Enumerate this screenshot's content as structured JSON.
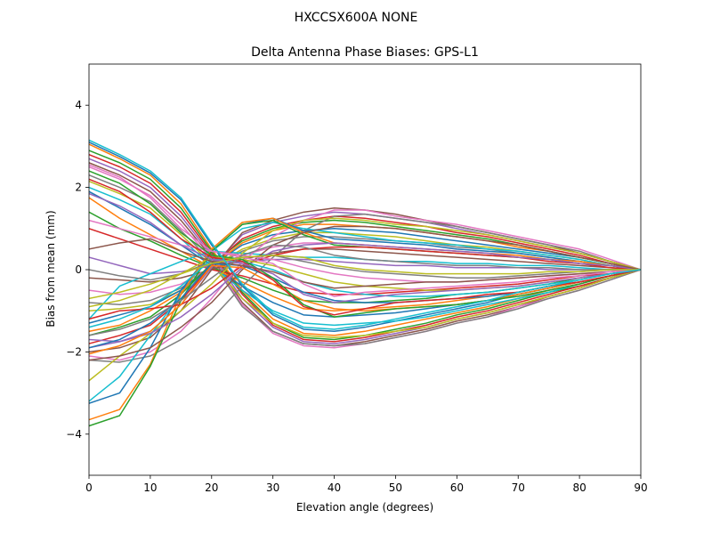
{
  "chart_data": {
    "type": "line",
    "suptitle": "HXCCSX600A      NONE",
    "title": "Delta Antenna Phase Biases: GPS-L1",
    "xlabel": "Elevation angle (degrees)",
    "ylabel": "Bias from mean (mm)",
    "xlim": [
      0,
      90
    ],
    "ylim": [
      -5,
      5
    ],
    "xticks": [
      0,
      10,
      20,
      30,
      40,
      50,
      60,
      70,
      80,
      90
    ],
    "yticks": [
      -4,
      -2,
      0,
      2,
      4
    ],
    "grid": false,
    "legend": "none",
    "x": [
      0,
      5,
      10,
      15,
      20,
      25,
      30,
      35,
      40,
      45,
      50,
      55,
      60,
      65,
      70,
      75,
      80,
      85,
      90
    ],
    "palette": [
      "#1f77b4",
      "#ff7f0e",
      "#2ca02c",
      "#d62728",
      "#9467bd",
      "#8c564b",
      "#e377c2",
      "#7f7f7f",
      "#bcbd22",
      "#17becf"
    ],
    "series": [
      {
        "values": [
          3.1,
          2.75,
          2.35,
          1.7,
          0.6,
          -0.4,
          -1.1,
          -1.45,
          -1.5,
          -1.4,
          -1.25,
          -1.1,
          -0.95,
          -0.8,
          -0.6,
          -0.45,
          -0.3,
          -0.15,
          0
        ]
      },
      {
        "values": [
          3.05,
          2.7,
          2.3,
          1.6,
          0.5,
          -0.5,
          -1.2,
          -1.55,
          -1.6,
          -1.5,
          -1.35,
          -1.2,
          -1.05,
          -0.9,
          -0.7,
          -0.5,
          -0.35,
          -0.15,
          0
        ]
      },
      {
        "values": [
          2.9,
          2.6,
          2.2,
          1.5,
          0.45,
          -0.55,
          -1.3,
          -1.65,
          -1.7,
          -1.6,
          -1.45,
          -1.3,
          -1.1,
          -0.95,
          -0.75,
          -0.55,
          -0.4,
          -0.2,
          0
        ]
      },
      {
        "values": [
          2.8,
          2.5,
          2.1,
          1.4,
          0.4,
          -0.6,
          -1.35,
          -1.7,
          -1.75,
          -1.65,
          -1.5,
          -1.35,
          -1.15,
          -1.0,
          -0.8,
          -0.6,
          -0.4,
          -0.2,
          0
        ]
      },
      {
        "values": [
          2.7,
          2.4,
          2.0,
          1.3,
          0.35,
          -0.7,
          -1.4,
          -1.75,
          -1.8,
          -1.7,
          -1.55,
          -1.4,
          -1.2,
          -1.05,
          -0.85,
          -0.65,
          -0.45,
          -0.2,
          0
        ]
      },
      {
        "values": [
          2.6,
          2.3,
          1.9,
          1.2,
          0.3,
          -0.8,
          -1.5,
          -1.8,
          -1.85,
          -1.75,
          -1.6,
          -1.45,
          -1.25,
          -1.1,
          -0.9,
          -0.65,
          -0.45,
          -0.2,
          0
        ]
      },
      {
        "values": [
          2.5,
          2.2,
          1.8,
          1.1,
          0.25,
          -0.85,
          -1.55,
          -1.85,
          -1.9,
          -1.8,
          -1.65,
          -1.5,
          -1.3,
          -1.15,
          -0.9,
          -0.7,
          -0.5,
          -0.25,
          0
        ]
      },
      {
        "values": [
          2.3,
          2.0,
          1.65,
          0.95,
          0.2,
          -0.9,
          -1.5,
          -1.8,
          -1.85,
          -1.8,
          -1.65,
          -1.5,
          -1.3,
          -1.15,
          -0.95,
          -0.7,
          -0.5,
          -0.25,
          0
        ]
      },
      {
        "values": [
          2.15,
          1.85,
          1.5,
          0.85,
          0.15,
          -0.7,
          -1.3,
          -1.6,
          -1.65,
          -1.6,
          -1.5,
          -1.4,
          -1.2,
          -1.05,
          -0.85,
          -0.65,
          -0.45,
          -0.2,
          0
        ]
      },
      {
        "values": [
          2.0,
          1.7,
          1.35,
          0.75,
          0.1,
          -0.5,
          -1.0,
          -1.3,
          -1.35,
          -1.3,
          -1.25,
          -1.15,
          -1.0,
          -0.85,
          -0.7,
          -0.55,
          -0.35,
          -0.15,
          0
        ]
      },
      {
        "values": [
          1.9,
          1.5,
          1.1,
          0.6,
          0.1,
          -0.4,
          -0.8,
          -1.1,
          -1.15,
          -1.1,
          -1.05,
          -0.95,
          -0.85,
          -0.75,
          -0.6,
          -0.45,
          -0.3,
          -0.15,
          0
        ]
      },
      {
        "values": [
          1.75,
          1.25,
          0.85,
          0.45,
          0.05,
          -0.3,
          -0.65,
          -0.95,
          -1.0,
          -0.95,
          -0.9,
          -0.85,
          -0.75,
          -0.65,
          -0.55,
          -0.4,
          -0.25,
          -0.1,
          0
        ]
      },
      {
        "values": [
          1.4,
          1.0,
          0.7,
          0.35,
          0.05,
          -0.2,
          -0.5,
          -0.75,
          -0.8,
          -0.8,
          -0.75,
          -0.7,
          -0.6,
          -0.55,
          -0.45,
          -0.35,
          -0.2,
          -0.1,
          0
        ]
      },
      {
        "values": [
          1.0,
          0.75,
          0.5,
          0.25,
          0.0,
          -0.15,
          -0.35,
          -0.55,
          -0.6,
          -0.6,
          -0.55,
          -0.5,
          -0.45,
          -0.4,
          -0.35,
          -0.25,
          -0.15,
          -0.1,
          0
        ]
      },
      {
        "values": [
          0.3,
          0.1,
          -0.1,
          -0.05,
          0.1,
          0.2,
          0.25,
          0.25,
          0.2,
          0.15,
          0.1,
          0.1,
          0.05,
          0.05,
          0.05,
          0.0,
          0.0,
          0.0,
          0
        ]
      },
      {
        "values": [
          -0.2,
          -0.25,
          -0.3,
          -0.2,
          0.0,
          0.25,
          0.4,
          0.5,
          0.5,
          0.45,
          0.4,
          0.35,
          0.3,
          0.25,
          0.2,
          0.15,
          0.1,
          0.05,
          0
        ]
      },
      {
        "values": [
          -0.5,
          -0.6,
          -0.55,
          -0.35,
          0.05,
          0.35,
          0.55,
          0.65,
          0.65,
          0.6,
          0.55,
          0.5,
          0.45,
          0.4,
          0.3,
          0.25,
          0.15,
          0.1,
          0
        ]
      },
      {
        "values": [
          -0.8,
          -0.85,
          -0.75,
          -0.45,
          0.05,
          0.45,
          0.7,
          0.8,
          0.8,
          0.75,
          0.7,
          0.65,
          0.55,
          0.5,
          0.4,
          0.3,
          0.2,
          0.1,
          0
        ]
      },
      {
        "values": [
          -1.0,
          -0.95,
          -0.85,
          -0.5,
          0.05,
          0.5,
          0.75,
          0.9,
          0.9,
          0.85,
          0.8,
          0.7,
          0.6,
          0.55,
          0.45,
          0.35,
          0.25,
          0.1,
          0
        ]
      },
      {
        "values": [
          -1.2,
          -0.4,
          -0.1,
          0.2,
          0.45,
          0.4,
          0.35,
          0.3,
          0.3,
          0.25,
          0.2,
          0.2,
          0.15,
          0.15,
          0.1,
          0.1,
          0.05,
          0.0,
          0
        ]
      },
      {
        "values": [
          -1.3,
          -1.1,
          -0.9,
          -0.5,
          0.1,
          0.6,
          0.85,
          0.95,
          1.0,
          0.95,
          0.9,
          0.8,
          0.7,
          0.6,
          0.5,
          0.4,
          0.3,
          0.15,
          0
        ]
      },
      {
        "values": [
          -1.5,
          -1.35,
          -1.0,
          -0.55,
          0.1,
          0.65,
          0.95,
          1.1,
          1.1,
          1.05,
          1.0,
          0.9,
          0.8,
          0.7,
          0.55,
          0.45,
          0.3,
          0.15,
          0
        ]
      },
      {
        "values": [
          -1.6,
          -1.4,
          -1.15,
          -0.6,
          0.15,
          0.7,
          1.0,
          1.15,
          1.2,
          1.15,
          1.05,
          0.95,
          0.85,
          0.75,
          0.6,
          0.45,
          0.3,
          0.15,
          0
        ]
      },
      {
        "values": [
          -1.8,
          -1.6,
          -1.35,
          -0.75,
          0.1,
          0.75,
          1.05,
          1.2,
          1.3,
          1.25,
          1.15,
          1.05,
          0.9,
          0.8,
          0.65,
          0.5,
          0.35,
          0.15,
          0
        ]
      },
      {
        "values": [
          -1.9,
          -1.75,
          -1.5,
          -0.85,
          0.05,
          0.85,
          1.15,
          1.3,
          1.4,
          1.35,
          1.25,
          1.15,
          1.0,
          0.85,
          0.7,
          0.55,
          0.4,
          0.2,
          0
        ]
      },
      {
        "values": [
          -2.0,
          -1.9,
          -1.65,
          -1.0,
          0.0,
          0.9,
          1.2,
          1.4,
          1.5,
          1.45,
          1.35,
          1.2,
          1.05,
          0.9,
          0.75,
          0.6,
          0.4,
          0.2,
          0
        ]
      },
      {
        "values": [
          -2.1,
          -2.2,
          -2.0,
          -1.5,
          -0.7,
          0.2,
          0.8,
          1.2,
          1.45,
          1.45,
          1.3,
          1.2,
          1.1,
          0.95,
          0.8,
          0.65,
          0.5,
          0.25,
          0
        ]
      },
      {
        "values": [
          -2.2,
          -2.25,
          -2.1,
          -1.7,
          -1.2,
          -0.4,
          0.3,
          0.95,
          1.3,
          1.35,
          1.25,
          1.15,
          1.05,
          0.9,
          0.75,
          0.6,
          0.45,
          0.2,
          0
        ]
      },
      {
        "values": [
          -2.7,
          -2.1,
          -1.55,
          -1.0,
          -0.35,
          0.4,
          0.95,
          1.2,
          1.25,
          1.2,
          1.1,
          1.05,
          0.95,
          0.85,
          0.7,
          0.55,
          0.4,
          0.2,
          0
        ]
      },
      {
        "values": [
          -3.2,
          -2.6,
          -1.6,
          -0.6,
          0.45,
          1.0,
          1.15,
          1.0,
          0.9,
          0.8,
          0.7,
          0.65,
          0.6,
          0.5,
          0.45,
          0.35,
          0.25,
          0.1,
          0
        ]
      },
      {
        "values": [
          -3.25,
          -3.0,
          -1.9,
          -0.5,
          0.45,
          1.1,
          1.25,
          0.95,
          0.75,
          0.7,
          0.65,
          0.6,
          0.5,
          0.45,
          0.4,
          0.3,
          0.2,
          0.1,
          0
        ]
      },
      {
        "values": [
          -3.65,
          -3.4,
          -2.3,
          -0.6,
          0.5,
          1.15,
          1.25,
          0.9,
          0.65,
          0.6,
          0.55,
          0.5,
          0.45,
          0.4,
          0.35,
          0.25,
          0.2,
          0.1,
          0
        ]
      },
      {
        "values": [
          -3.8,
          -3.55,
          -2.35,
          -0.75,
          0.45,
          1.1,
          1.2,
          0.85,
          0.6,
          0.55,
          0.5,
          0.45,
          0.4,
          0.35,
          0.3,
          0.25,
          0.15,
          0.1,
          0
        ]
      },
      {
        "values": [
          -1.2,
          -1.0,
          -0.95,
          -0.85,
          -0.45,
          0.1,
          0.35,
          0.5,
          0.55,
          0.55,
          0.5,
          0.45,
          0.4,
          0.35,
          0.3,
          0.2,
          0.15,
          0.05,
          0
        ]
      },
      {
        "values": [
          -1.7,
          -1.75,
          -1.55,
          -1.15,
          -0.6,
          0.05,
          0.45,
          0.6,
          0.65,
          0.6,
          0.55,
          0.5,
          0.45,
          0.4,
          0.3,
          0.25,
          0.15,
          0.1,
          0
        ]
      },
      {
        "values": [
          -2.2,
          -2.1,
          -1.9,
          -1.4,
          -0.8,
          0.0,
          0.6,
          0.9,
          1.05,
          1.05,
          1.0,
          0.9,
          0.8,
          0.7,
          0.6,
          0.45,
          0.3,
          0.15,
          0
        ]
      },
      {
        "values": [
          1.2,
          1.0,
          0.8,
          0.6,
          0.45,
          0.35,
          0.25,
          0.05,
          -0.1,
          -0.2,
          -0.25,
          -0.3,
          -0.3,
          -0.25,
          -0.2,
          -0.15,
          -0.1,
          -0.05,
          0
        ]
      },
      {
        "values": [
          0.0,
          -0.15,
          -0.25,
          -0.1,
          0.2,
          0.3,
          0.35,
          0.2,
          0.05,
          -0.05,
          -0.1,
          -0.15,
          -0.2,
          -0.2,
          -0.15,
          -0.1,
          -0.05,
          0.0,
          0
        ]
      },
      {
        "values": [
          -0.9,
          -0.75,
          -0.5,
          -0.1,
          0.3,
          0.25,
          0.1,
          -0.1,
          -0.3,
          -0.4,
          -0.45,
          -0.5,
          -0.5,
          -0.45,
          -0.4,
          -0.3,
          -0.2,
          -0.1,
          0
        ]
      },
      {
        "values": [
          -1.4,
          -1.2,
          -0.9,
          -0.4,
          0.25,
          0.2,
          0.0,
          -0.3,
          -0.5,
          -0.6,
          -0.65,
          -0.65,
          -0.6,
          -0.55,
          -0.45,
          -0.35,
          -0.25,
          -0.1,
          0
        ]
      },
      {
        "values": [
          -1.9,
          -1.7,
          -1.3,
          -0.7,
          0.15,
          0.1,
          -0.2,
          -0.55,
          -0.75,
          -0.8,
          -0.8,
          -0.75,
          -0.7,
          -0.65,
          -0.55,
          -0.4,
          -0.3,
          -0.15,
          0
        ]
      },
      {
        "values": [
          -2.05,
          -1.85,
          -1.5,
          -0.85,
          0.1,
          0.05,
          -0.35,
          -0.75,
          -0.95,
          -1.0,
          -0.95,
          -0.9,
          -0.85,
          -0.75,
          -0.6,
          -0.45,
          -0.3,
          -0.15,
          0
        ]
      },
      {
        "values": [
          2.4,
          2.1,
          1.6,
          0.9,
          0.35,
          0.25,
          -0.2,
          -0.85,
          -1.15,
          -1.05,
          -0.95,
          -0.9,
          -0.85,
          -0.75,
          -0.65,
          -0.5,
          -0.35,
          -0.15,
          0
        ]
      },
      {
        "values": [
          2.2,
          1.9,
          1.4,
          0.75,
          0.3,
          0.2,
          -0.25,
          -0.9,
          -1.1,
          -0.95,
          -0.8,
          -0.75,
          -0.7,
          -0.6,
          -0.55,
          -0.4,
          -0.3,
          -0.15,
          0
        ]
      },
      {
        "values": [
          1.85,
          1.55,
          1.15,
          0.6,
          0.25,
          0.15,
          -0.1,
          -0.6,
          -0.8,
          -0.7,
          -0.6,
          -0.55,
          -0.5,
          -0.45,
          -0.4,
          -0.3,
          -0.2,
          -0.1,
          0
        ]
      },
      {
        "values": [
          0.5,
          0.65,
          0.75,
          0.45,
          0.2,
          0.1,
          -0.05,
          -0.3,
          -0.45,
          -0.4,
          -0.35,
          -0.3,
          -0.3,
          -0.25,
          -0.2,
          -0.15,
          -0.1,
          -0.05,
          0
        ]
      },
      {
        "values": [
          2.55,
          2.25,
          1.75,
          1.0,
          0.45,
          0.3,
          0.15,
          -0.35,
          -0.65,
          -0.55,
          -0.5,
          -0.45,
          -0.4,
          -0.35,
          -0.3,
          -0.2,
          -0.15,
          -0.05,
          0
        ]
      },
      {
        "values": [
          -1.6,
          -1.45,
          -1.2,
          -0.75,
          -0.2,
          0.35,
          0.6,
          0.55,
          0.35,
          0.25,
          0.2,
          0.15,
          0.1,
          0.1,
          0.05,
          0.05,
          0.0,
          0.0,
          0
        ]
      },
      {
        "values": [
          -0.7,
          -0.55,
          -0.35,
          -0.1,
          0.15,
          0.3,
          0.35,
          0.3,
          0.1,
          0.0,
          -0.05,
          -0.1,
          -0.1,
          -0.1,
          -0.1,
          -0.05,
          -0.05,
          0.0,
          0
        ]
      },
      {
        "values": [
          3.15,
          2.8,
          2.4,
          1.75,
          0.65,
          -0.35,
          -1.05,
          -1.4,
          -1.45,
          -1.35,
          -1.2,
          -1.05,
          -0.9,
          -0.75,
          -0.55,
          -0.4,
          -0.25,
          -0.1,
          0
        ]
      }
    ]
  }
}
